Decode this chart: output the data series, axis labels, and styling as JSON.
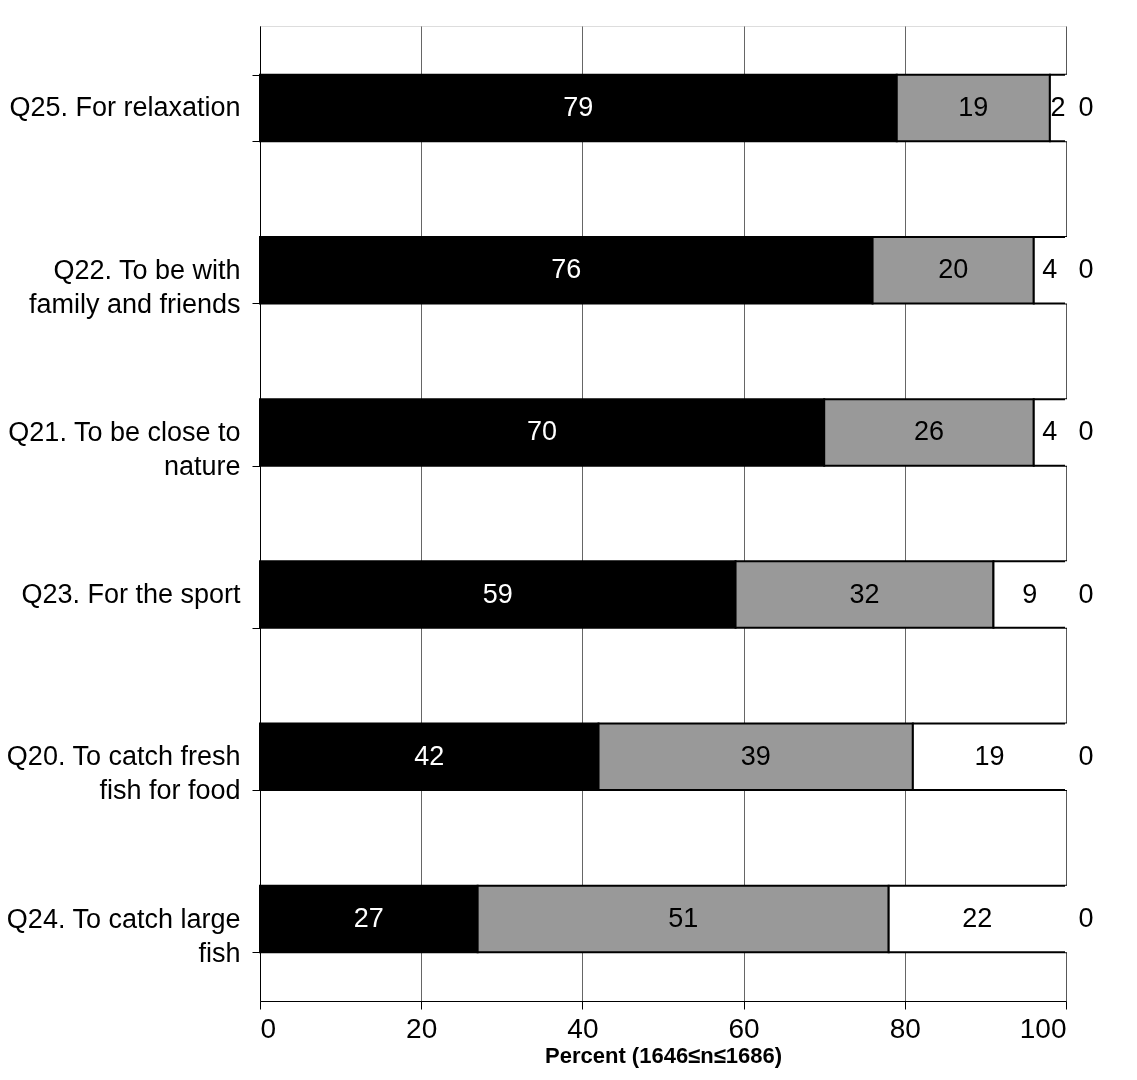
{
  "chart_data": {
    "type": "bar",
    "orientation": "horizontal",
    "stacked": true,
    "data_labels": true,
    "categories": [
      "Q25. For relaxation",
      "Q22. To be with\nfamily and friends",
      "Q21. To be close to\nnature",
      "Q23. For the sport",
      "Q20. To catch fresh\nfish for food",
      "Q24. To catch large\nfish"
    ],
    "series": [
      {
        "color": "#000000",
        "values": [
          79,
          76,
          70,
          59,
          42,
          27
        ]
      },
      {
        "color": "#999999",
        "values": [
          19,
          20,
          26,
          32,
          39,
          51
        ]
      },
      {
        "color": "#ffffff",
        "values": [
          2,
          4,
          4,
          9,
          19,
          22
        ]
      },
      {
        "color": "#ffffff",
        "values": [
          0,
          0,
          0,
          0,
          0,
          0
        ]
      }
    ],
    "xlabel": "Percent (1646≤n≤1686)",
    "xlim": [
      0,
      100
    ],
    "xticks": [
      0,
      20,
      40,
      60,
      80,
      100
    ],
    "grid": "x"
  }
}
